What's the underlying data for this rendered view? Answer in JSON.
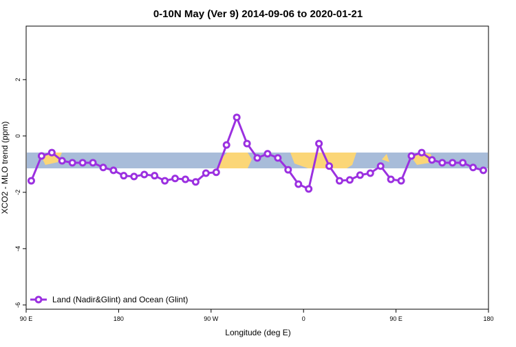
{
  "chart_data": {
    "type": "line",
    "title": "0-10N May (Ver 9)   2014-09-06 to 2020-01-21",
    "x_label": "Longitude (deg E)",
    "y_label": "XCO2 - MLO trend (ppm)",
    "x": [
      95,
      105,
      115,
      125,
      135,
      145,
      155,
      165,
      175,
      185,
      195,
      205,
      215,
      225,
      235,
      245,
      255,
      265,
      275,
      285,
      295,
      305,
      315,
      325,
      335,
      345,
      355,
      365,
      375,
      385,
      395,
      405,
      415,
      425,
      435,
      445,
      455,
      465,
      475,
      485,
      495,
      505,
      515,
      525,
      535
    ],
    "series": [
      {
        "name": "Land (Nadir&Glint) and Ocean (Glint)",
        "color": "#9b30e0",
        "values": [
          -1.59,
          -0.71,
          -0.59,
          -0.88,
          -0.95,
          -0.95,
          -0.95,
          -1.12,
          -1.22,
          -1.41,
          -1.44,
          -1.37,
          -1.41,
          -1.59,
          -1.51,
          -1.54,
          -1.63,
          -1.32,
          -1.29,
          -0.32,
          0.66,
          -0.27,
          -0.78,
          -0.63,
          -0.78,
          -1.2,
          -1.71,
          -1.88,
          -0.27,
          -1.07,
          -1.59,
          -1.56,
          -1.39,
          -1.32,
          -1.07,
          -1.54,
          -1.59,
          -0.71,
          -0.59,
          -0.85,
          -0.95,
          -0.95,
          -0.95,
          -1.12,
          -1.22
        ]
      }
    ],
    "xlim": [
      90,
      540
    ],
    "xticks": [
      {
        "value": 90,
        "label": "90 E"
      },
      {
        "value": 180,
        "label": "180"
      },
      {
        "value": 270,
        "label": "90 W"
      },
      {
        "value": 360,
        "label": "0"
      },
      {
        "value": 450,
        "label": "90 E"
      },
      {
        "value": 540,
        "label": "180"
      }
    ],
    "ylim": [
      -6.15,
      3.9
    ],
    "yticks": [
      2,
      0,
      -2,
      -4,
      -6
    ],
    "legend": "bottom-left"
  }
}
